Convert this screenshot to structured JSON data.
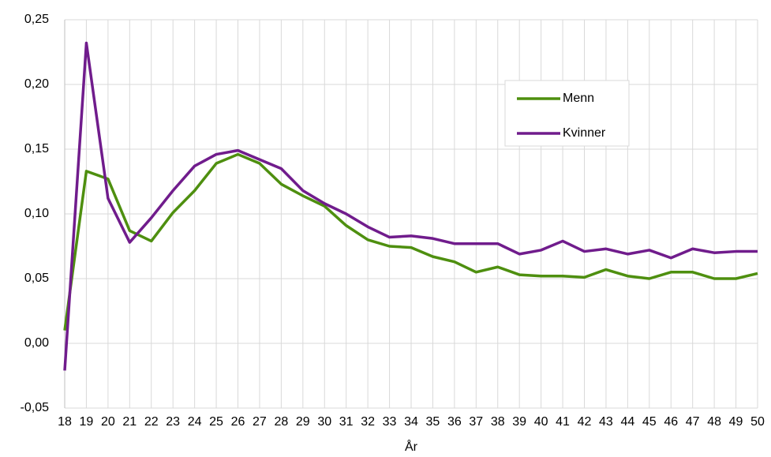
{
  "chart_data": {
    "type": "line",
    "x_label": "År",
    "categories": [
      "18",
      "19",
      "20",
      "21",
      "22",
      "23",
      "24",
      "25",
      "26",
      "27",
      "28",
      "29",
      "30",
      "31",
      "32",
      "33",
      "34",
      "35",
      "36",
      "37",
      "38",
      "39",
      "40",
      "41",
      "42",
      "43",
      "44",
      "45",
      "46",
      "47",
      "48",
      "49",
      "50"
    ],
    "series": [
      {
        "name": "Menn",
        "color": "#4e8f0f",
        "values": [
          0.01,
          0.133,
          0.127,
          0.087,
          0.079,
          0.101,
          0.118,
          0.139,
          0.146,
          0.139,
          0.123,
          0.114,
          0.106,
          0.091,
          0.08,
          0.075,
          0.074,
          0.067,
          0.063,
          0.055,
          0.059,
          0.053,
          0.052,
          0.052,
          0.051,
          0.057,
          0.052,
          0.05,
          0.055,
          0.055,
          0.05,
          0.05,
          0.054
        ]
      },
      {
        "name": "Kvinner",
        "color": "#701c8c",
        "values": [
          -0.021,
          0.232,
          0.112,
          0.078,
          0.097,
          0.118,
          0.137,
          0.146,
          0.149,
          0.142,
          0.135,
          0.118,
          0.108,
          0.1,
          0.09,
          0.082,
          0.083,
          0.081,
          0.077,
          0.077,
          0.077,
          0.069,
          0.072,
          0.079,
          0.071,
          0.073,
          0.069,
          0.072,
          0.066,
          0.073,
          0.07,
          0.071,
          0.071
        ]
      }
    ],
    "ylim": [
      -0.05,
      0.25
    ],
    "yticks": [
      {
        "value": -0.05,
        "label": "-0,05"
      },
      {
        "value": 0,
        "label": "0,00"
      },
      {
        "value": 0.05,
        "label": "0,05"
      },
      {
        "value": 0.1,
        "label": "0,10"
      },
      {
        "value": 0.15,
        "label": "0,15"
      },
      {
        "value": 0.2,
        "label": "0,20"
      },
      {
        "value": 0.25,
        "label": "0,25"
      }
    ],
    "grid": true,
    "legend": "upper-right"
  }
}
